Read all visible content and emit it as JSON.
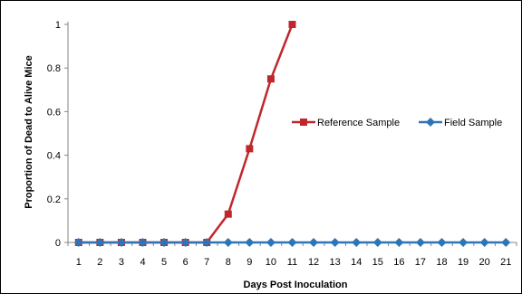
{
  "chart_data": {
    "type": "line",
    "title": "",
    "xlabel": "Days Post Inoculation",
    "ylabel": "Proportion of Dead to Alive Mice",
    "x": [
      1,
      2,
      3,
      4,
      5,
      6,
      7,
      8,
      9,
      10,
      11,
      12,
      13,
      14,
      15,
      16,
      17,
      18,
      19,
      20,
      21
    ],
    "x_tick_labels": [
      "1",
      "2",
      "3",
      "4",
      "5",
      "6",
      "7",
      "8",
      "9",
      "10",
      "11",
      "12",
      "13",
      "14",
      "15",
      "16",
      "17",
      "18",
      "19",
      "20",
      "21"
    ],
    "y_tick_labels": [
      "0",
      "0.2",
      "0.4",
      "0.6",
      "0.8",
      "1"
    ],
    "y_ticks": [
      0,
      0.2,
      0.4,
      0.6,
      0.8,
      1
    ],
    "ylim": [
      0,
      1
    ],
    "grid": false,
    "legend_position": "right",
    "series": [
      {
        "name": "Reference Sample",
        "color": "#C0272D",
        "marker": "square",
        "x": [
          1,
          2,
          3,
          4,
          5,
          6,
          7,
          8,
          9,
          10,
          11
        ],
        "values": [
          0,
          0,
          0,
          0,
          0,
          0,
          0,
          0.13,
          0.43,
          0.75,
          1.0
        ]
      },
      {
        "name": "Field Sample",
        "color": "#2E75B6",
        "marker": "diamond",
        "x": [
          1,
          2,
          3,
          4,
          5,
          6,
          7,
          8,
          9,
          10,
          11,
          12,
          13,
          14,
          15,
          16,
          17,
          18,
          19,
          20,
          21
        ],
        "values": [
          0,
          0,
          0,
          0,
          0,
          0,
          0,
          0,
          0,
          0,
          0,
          0,
          0,
          0,
          0,
          0,
          0,
          0,
          0,
          0,
          0
        ]
      }
    ]
  }
}
